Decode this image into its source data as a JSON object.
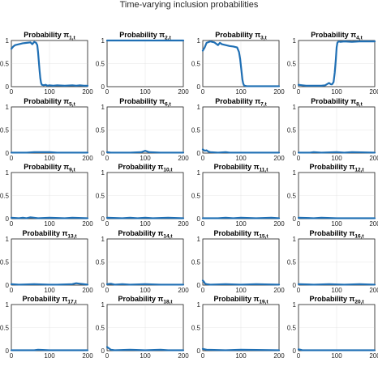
{
  "chart_data": {
    "type": "line",
    "title": "Time-varying inclusion probabilities",
    "line_color": "#1f6fb4",
    "grid": true,
    "xlim": [
      0,
      200
    ],
    "ylim": [
      0,
      1
    ],
    "xticks": [
      0,
      100,
      200
    ],
    "yticks": [
      0,
      0.5,
      1
    ],
    "panels": [
      {
        "title": "Probability π",
        "subscript": "1,t",
        "x": [
          0,
          5,
          10,
          20,
          30,
          40,
          50,
          55,
          60,
          65,
          68,
          70,
          72,
          74,
          76,
          78,
          80,
          85,
          90,
          95,
          100,
          110,
          120,
          140,
          160,
          170,
          180,
          190,
          200
        ],
        "y": [
          0.82,
          0.87,
          0.9,
          0.92,
          0.94,
          0.95,
          0.96,
          0.92,
          0.97,
          0.95,
          0.9,
          0.75,
          0.55,
          0.35,
          0.18,
          0.08,
          0.04,
          0.03,
          0.04,
          0.02,
          0.03,
          0.02,
          0.03,
          0.02,
          0.03,
          0.02,
          0.03,
          0.02,
          0.02
        ]
      },
      {
        "title": "Probability π",
        "subscript": "2,t",
        "x": [
          0,
          200
        ],
        "y": [
          1,
          1
        ]
      },
      {
        "title": "Probability π",
        "subscript": "3,t",
        "x": [
          0,
          5,
          10,
          20,
          30,
          40,
          45,
          50,
          60,
          70,
          80,
          90,
          95,
          98,
          100,
          102,
          104,
          106,
          108,
          110,
          115,
          120,
          140,
          160,
          180,
          200
        ],
        "y": [
          0.78,
          0.85,
          0.95,
          0.98,
          0.96,
          0.9,
          0.95,
          0.92,
          0.9,
          0.88,
          0.87,
          0.85,
          0.75,
          0.6,
          0.45,
          0.3,
          0.15,
          0.07,
          0.03,
          0.02,
          0.01,
          0.01,
          0.01,
          0.01,
          0.01,
          0.01
        ]
      },
      {
        "title": "Probability π",
        "subscript": "4,t",
        "x": [
          0,
          10,
          20,
          40,
          60,
          70,
          80,
          85,
          88,
          92,
          95,
          98,
          100,
          102,
          104,
          106,
          110,
          120,
          140,
          160,
          180,
          200
        ],
        "y": [
          0.04,
          0.03,
          0.02,
          0.02,
          0.02,
          0.03,
          0.08,
          0.05,
          0.05,
          0.1,
          0.3,
          0.6,
          0.85,
          0.95,
          0.97,
          0.98,
          0.97,
          0.98,
          0.97,
          0.98,
          0.98,
          0.98
        ]
      },
      {
        "title": "Probability π",
        "subscript": "5,t",
        "x": [
          0,
          40,
          60,
          100,
          120,
          200
        ],
        "y": [
          0.01,
          0.01,
          0.02,
          0.02,
          0.01,
          0.01
        ]
      },
      {
        "title": "Probability π",
        "subscript": "6,t",
        "x": [
          0,
          10,
          20,
          60,
          90,
          100,
          110,
          140,
          200
        ],
        "y": [
          0.02,
          0.01,
          0.01,
          0.01,
          0.02,
          0.05,
          0.02,
          0.01,
          0.01
        ]
      },
      {
        "title": "Probability π",
        "subscript": "7,t",
        "x": [
          0,
          5,
          10,
          15,
          20,
          40,
          60,
          70,
          100,
          120,
          200
        ],
        "y": [
          0.08,
          0.05,
          0.06,
          0.03,
          0.02,
          0.01,
          0.02,
          0.01,
          0.01,
          0.01,
          0.01
        ]
      },
      {
        "title": "Probability π",
        "subscript": "8,t",
        "x": [
          0,
          30,
          40,
          60,
          100,
          120,
          140,
          200
        ],
        "y": [
          0.01,
          0.01,
          0.02,
          0.01,
          0.02,
          0.01,
          0.02,
          0.01
        ]
      },
      {
        "title": "Probability π",
        "subscript": "9,t",
        "x": [
          0,
          20,
          30,
          40,
          50,
          70,
          100,
          140,
          160,
          200
        ],
        "y": [
          0.02,
          0.01,
          0.02,
          0.01,
          0.03,
          0.01,
          0.02,
          0.01,
          0.02,
          0.01
        ]
      },
      {
        "title": "Probability π",
        "subscript": "10,t",
        "x": [
          0,
          40,
          60,
          80,
          100,
          120,
          160,
          200
        ],
        "y": [
          0.02,
          0.01,
          0.02,
          0.01,
          0.02,
          0.01,
          0.02,
          0.01
        ]
      },
      {
        "title": "Probability π",
        "subscript": "11,t",
        "x": [
          0,
          40,
          60,
          80,
          100,
          140,
          180,
          200
        ],
        "y": [
          0.01,
          0.01,
          0.02,
          0.01,
          0.02,
          0.01,
          0.02,
          0.01
        ]
      },
      {
        "title": "Probability π",
        "subscript": "12,t",
        "x": [
          0,
          40,
          60,
          100,
          140,
          200
        ],
        "y": [
          0.02,
          0.01,
          0.02,
          0.01,
          0.01,
          0.01
        ]
      },
      {
        "title": "Probability π",
        "subscript": "13,t",
        "x": [
          0,
          20,
          60,
          100,
          120,
          160,
          170,
          180,
          190,
          200
        ],
        "y": [
          0.02,
          0.01,
          0.02,
          0.01,
          0.01,
          0.02,
          0.04,
          0.03,
          0.02,
          0.01
        ]
      },
      {
        "title": "Probability π",
        "subscript": "14,t",
        "x": [
          0,
          10,
          20,
          40,
          60,
          100,
          140,
          200
        ],
        "y": [
          0.02,
          0.03,
          0.01,
          0.02,
          0.01,
          0.02,
          0.01,
          0.01
        ]
      },
      {
        "title": "Probability π",
        "subscript": "15,t",
        "x": [
          0,
          3,
          6,
          10,
          20,
          60,
          100,
          140,
          200
        ],
        "y": [
          0.1,
          0.07,
          0.03,
          0.02,
          0.01,
          0.02,
          0.01,
          0.02,
          0.01
        ]
      },
      {
        "title": "Probability π",
        "subscript": "16,t",
        "x": [
          0,
          40,
          80,
          120,
          160,
          200
        ],
        "y": [
          0.02,
          0.01,
          0.02,
          0.01,
          0.02,
          0.01
        ]
      },
      {
        "title": "Probability π",
        "subscript": "17,t",
        "x": [
          0,
          60,
          70,
          100,
          200
        ],
        "y": [
          0.01,
          0.01,
          0.02,
          0.01,
          0.01
        ]
      },
      {
        "title": "Probability π",
        "subscript": "18,t",
        "x": [
          0,
          5,
          10,
          20,
          60,
          100,
          140,
          160,
          200
        ],
        "y": [
          0.08,
          0.05,
          0.02,
          0.01,
          0.02,
          0.01,
          0.02,
          0.01,
          0.01
        ]
      },
      {
        "title": "Probability π",
        "subscript": "19,t",
        "x": [
          0,
          5,
          10,
          60,
          100,
          200
        ],
        "y": [
          0.04,
          0.03,
          0.02,
          0.01,
          0.02,
          0.01
        ]
      },
      {
        "title": "Probability π",
        "subscript": "20,t",
        "x": [
          0,
          5,
          10,
          60,
          100,
          200
        ],
        "y": [
          0.03,
          0.02,
          0.01,
          0.01,
          0.01,
          0.01
        ]
      }
    ]
  }
}
